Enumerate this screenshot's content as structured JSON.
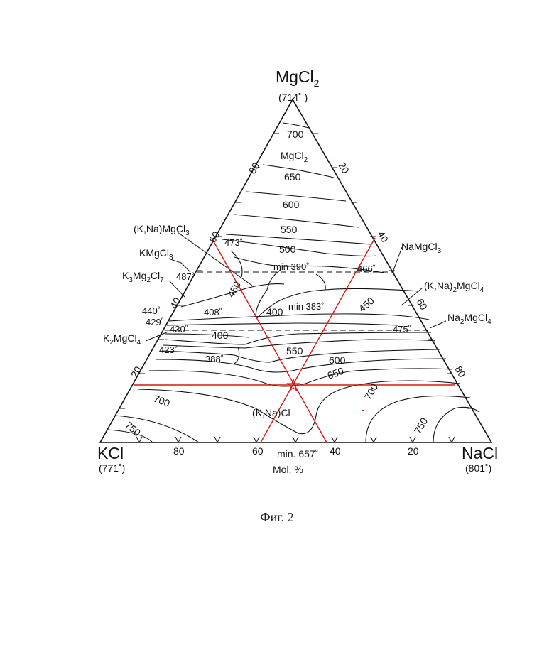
{
  "vertices": {
    "top": {
      "name": "MgCl",
      "sub": "2",
      "temp": "(714˚ )"
    },
    "left": {
      "name": "KCl",
      "temp": "(771˚)"
    },
    "right": {
      "name": "NaCl",
      "temp": "(801˚)"
    }
  },
  "bottom_axis": {
    "ticks": [
      "80",
      "60",
      "40",
      "20"
    ],
    "min_label": "min. 657˚",
    "unit_label": "Mol. %"
  },
  "left_axis_ticks": [
    "80",
    "60",
    "40",
    "20"
  ],
  "right_axis_ticks": [
    "20",
    "40",
    "60",
    "80"
  ],
  "isotherm_labels": [
    "700",
    "650",
    "600",
    "550",
    "500",
    "450",
    "400",
    "400",
    "550",
    "600",
    "650",
    "700",
    "750",
    "750",
    "450"
  ],
  "field_labels": {
    "mgcl2": "MgCl",
    "mgcl2_sub": "2",
    "kna_cl": "(K,Na)Cl",
    "min390": "min 390˚",
    "min383": "min 383˚"
  },
  "point_temps": [
    "473˚",
    "487˚",
    "466˚",
    "440˚",
    "429˚",
    "408˚",
    "430˚",
    "475˚",
    "423˚",
    "388˚"
  ],
  "compound_labels": {
    "kna_mgcl3": "(K,Na)MgCl",
    "kna_mgcl3_sub": "3",
    "kmgcl3": "KMgCl",
    "kmgcl3_sub": "3",
    "k3mg2cl7_a": "K",
    "k3mg2cl7_b": "Mg",
    "k3mg2cl7_c": "Cl",
    "k3mg2cl7_s1": "3",
    "k3mg2cl7_s2": "2",
    "k3mg2cl7_s3": "7",
    "k2mgcl4": "K",
    "k2mgcl4_b": "MgCl",
    "k2mgcl4_s1": "2",
    "k2mgcl4_s2": "4",
    "namgcl3": "NaMgCl",
    "namgcl3_sub": "3",
    "kna2mgcl4": "(K,Na)",
    "kna2mgcl4_b": "MgCl",
    "kna2mgcl4_s1": "2",
    "kna2mgcl4_s2": "4",
    "na2mgcl4": "Na",
    "na2mgcl4_b": "MgCl",
    "na2mgcl4_s1": "2",
    "na2mgcl4_s2": "4"
  },
  "figure_caption": "Фиг. 2",
  "colors": {
    "ink": "#111111",
    "highlight": "#d01818"
  }
}
